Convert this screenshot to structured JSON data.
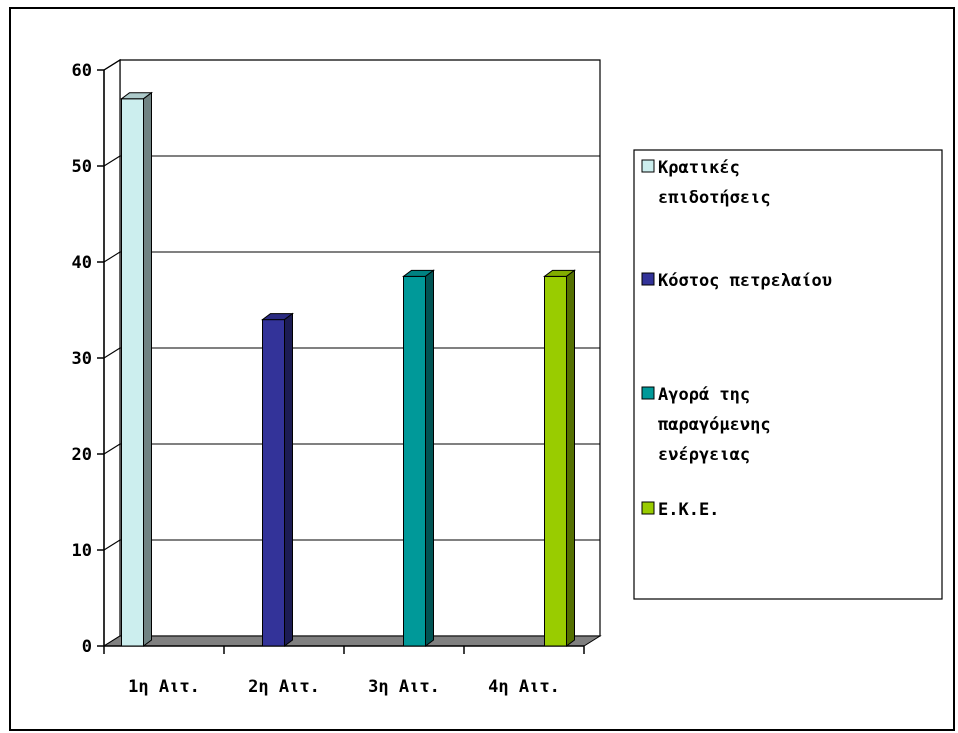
{
  "chart_data": {
    "type": "bar",
    "categories": [
      "1η Αιτ.",
      "2η Αιτ.",
      "3η Αιτ.",
      "4η Αιτ."
    ],
    "series": [
      {
        "name": "Κρατικές επιδοτήσεις",
        "values": [
          57,
          0,
          0,
          0
        ],
        "color": "#cceeee"
      },
      {
        "name": "Κόστος πετρελαίου",
        "values": [
          0,
          34,
          0,
          0
        ],
        "color": "#333399"
      },
      {
        "name": "Αγορά της παραγόμενης ενέργειας",
        "values": [
          0,
          0,
          38.5,
          0
        ],
        "color": "#009999"
      },
      {
        "name": "Ε.Κ.Ε.",
        "values": [
          0,
          0,
          0,
          38.5
        ],
        "color": "#99cc00"
      }
    ],
    "legend_lines": [
      [
        "Κρατικές",
        "επιδοτήσεις"
      ],
      [
        "Κόστος πετρελαίου"
      ],
      [
        "Αγορά της",
        "παραγόμενης",
        "ενέργειας"
      ],
      [
        "Ε.Κ.Ε."
      ]
    ],
    "y_ticks": [
      "0",
      "10",
      "20",
      "30",
      "40",
      "50",
      "60"
    ],
    "ylim": [
      0,
      60
    ],
    "grid": true,
    "legend_position": "right",
    "title": "",
    "xlabel": "",
    "ylabel": ""
  }
}
